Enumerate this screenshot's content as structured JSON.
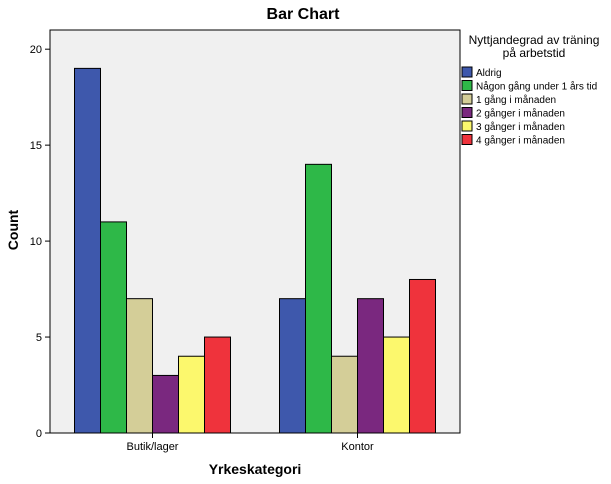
{
  "chart_data": {
    "type": "bar",
    "title": "Bar Chart",
    "xlabel": "Yrkeskategori",
    "ylabel": "Count",
    "categories": [
      "Butik/lager",
      "Kontor"
    ],
    "ylim": [
      0,
      21
    ],
    "yticks": [
      0,
      5,
      10,
      15,
      20
    ],
    "grid": false,
    "legend": {
      "title_lines": [
        "Nyttjandegrad av träning",
        "på arbetstid"
      ],
      "position": "right"
    },
    "series": [
      {
        "name": "Aldrig",
        "values": [
          19,
          7
        ],
        "color": "#3e58ac"
      },
      {
        "name": "Någon gång under 1 års tid",
        "values": [
          11,
          14
        ],
        "color": "#2eb848"
      },
      {
        "name": "1 gång i månaden",
        "values": [
          7,
          4
        ],
        "color": "#d4ce98"
      },
      {
        "name": "2 gånger i månaden",
        "values": [
          3,
          7
        ],
        "color": "#7a287f"
      },
      {
        "name": "3 gånger i månaden",
        "values": [
          4,
          5
        ],
        "color": "#fcf86d"
      },
      {
        "name": "4 gånger i månaden",
        "values": [
          5,
          8
        ],
        "color": "#ef333c"
      }
    ],
    "plot_background": "#f0f0f0",
    "bar_border": "#000000"
  }
}
